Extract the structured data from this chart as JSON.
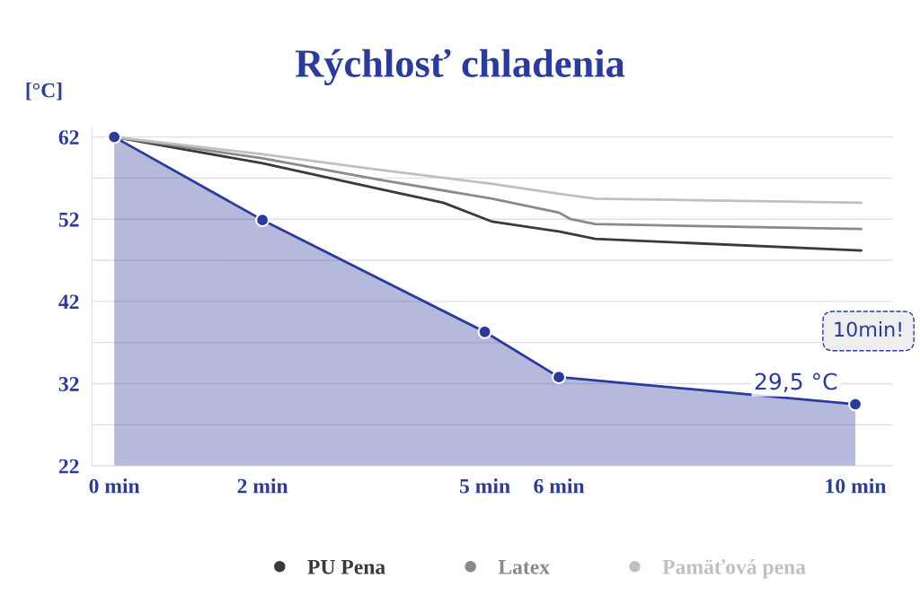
{
  "chart_data": {
    "type": "line",
    "title": "Rýchlosť chladenia",
    "ylabel": "[°C]",
    "xlim": [
      -0.3,
      10.5
    ],
    "ylim": [
      22,
      63
    ],
    "xticks": [
      {
        "value": 0,
        "label": "0 min"
      },
      {
        "value": 2,
        "label": "2 min"
      },
      {
        "value": 5,
        "label": "5 min"
      },
      {
        "value": 6,
        "label": "6 min"
      },
      {
        "value": 10,
        "label": "10 min"
      }
    ],
    "yticks": [
      22,
      {
        "value": 27,
        "label": null
      },
      32,
      {
        "value": 37,
        "label": null
      },
      42,
      {
        "value": 47,
        "label": null
      },
      52,
      {
        "value": 57,
        "label": null
      },
      62
    ],
    "grid": "y",
    "legend": "bottom",
    "series": [
      {
        "type": "area",
        "color": "#2b3a9e",
        "marker": "circle",
        "x": [
          0,
          2,
          5,
          6,
          10
        ],
        "values": [
          62,
          51.9,
          38.3,
          32.8,
          29.5
        ]
      },
      {
        "name": "PU Pena",
        "color": "#3a3a3a",
        "marker": "none",
        "x": [
          0,
          2,
          3.57,
          4.44,
          5.1,
          6,
          6.49,
          10.08
        ],
        "values": [
          62,
          58.8,
          55.7,
          54,
          51.7,
          50.5,
          49.6,
          48.2
        ]
      },
      {
        "name": "Latex",
        "color": "#8a8a8a",
        "marker": "none",
        "x": [
          0,
          2,
          3.57,
          5.1,
          6,
          6.16,
          6.49,
          10.08
        ],
        "values": [
          62,
          59.4,
          56.8,
          54.5,
          52.8,
          52,
          51.4,
          50.8
        ]
      },
      {
        "name": "Pamäťová pena",
        "color": "#c0c0c0",
        "marker": "none",
        "x": [
          0,
          2,
          3.57,
          5.1,
          6,
          6.49,
          10.08
        ],
        "values": [
          62,
          59.9,
          58,
          56.3,
          55.1,
          54.5,
          54
        ]
      }
    ],
    "annotations": [
      {
        "text": "29,5 °C",
        "x": 10,
        "y": 29.5
      },
      "10min!"
    ]
  }
}
